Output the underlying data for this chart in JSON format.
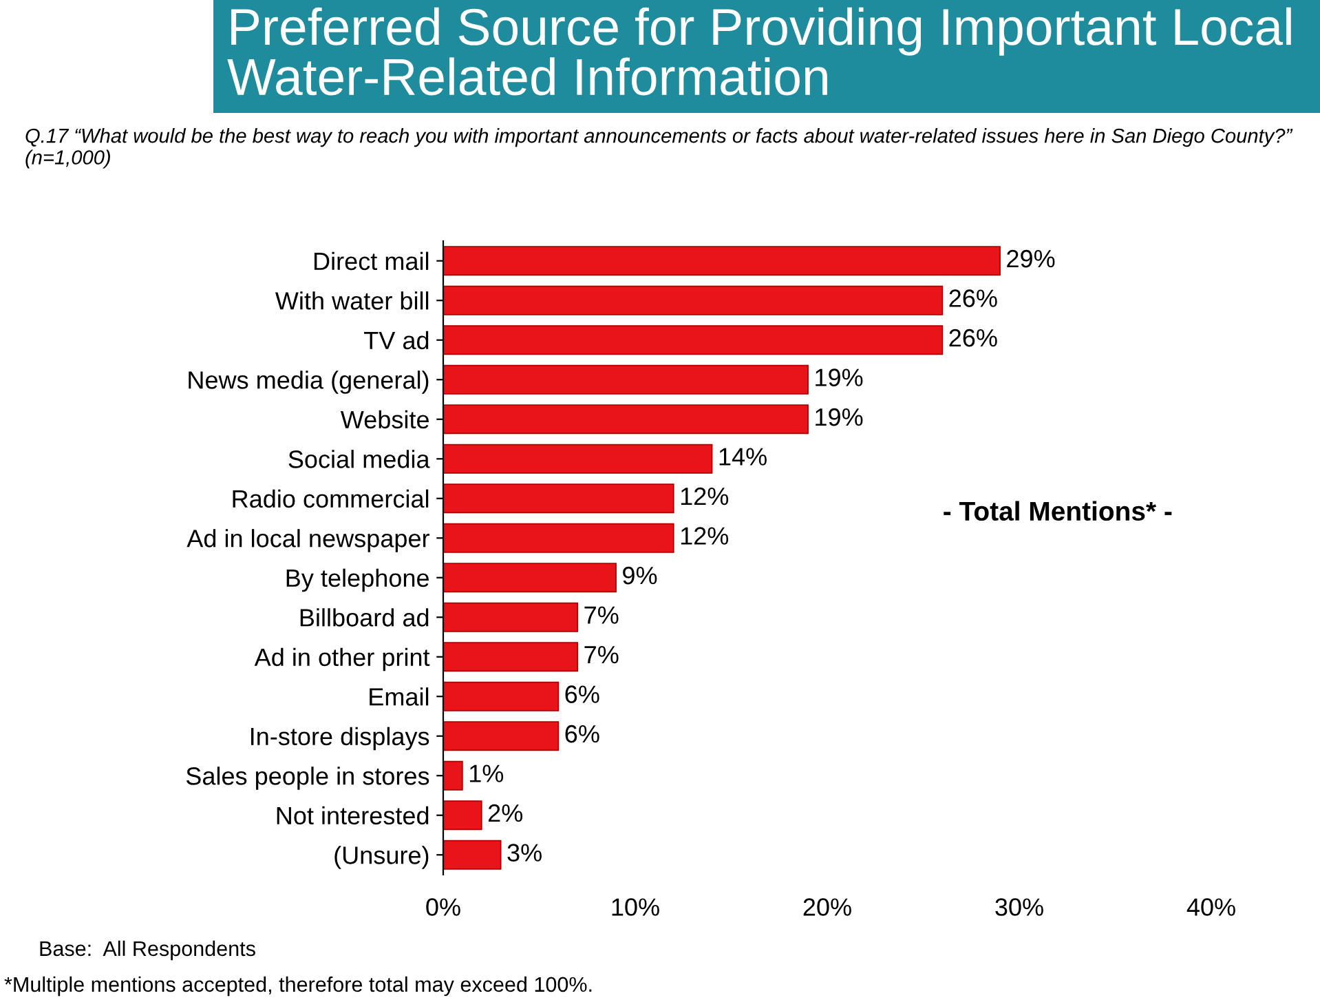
{
  "chart_data": {
    "type": "bar",
    "orientation": "horizontal",
    "title": "Preferred Source for Providing Important Local Water-Related Information",
    "subtitle": "Q.17 “What would be the best way to reach you with important announcements or facts about water-related issues here in San Diego County?” (n=1,000)",
    "categories": [
      "Direct mail",
      "With water bill",
      "TV ad",
      "News media (general)",
      "Website",
      "Social media",
      "Radio commercial",
      "Ad in local newspaper",
      "By telephone",
      "Billboard ad",
      "Ad in other print",
      "Email",
      "In-store displays",
      "Sales people in stores",
      "Not interested",
      "(Unsure)"
    ],
    "values": [
      29,
      26,
      26,
      19,
      19,
      14,
      12,
      12,
      9,
      7,
      7,
      6,
      6,
      1,
      2,
      3
    ],
    "value_labels": [
      "29%",
      "26%",
      "26%",
      "19%",
      "19%",
      "14%",
      "12%",
      "12%",
      "9%",
      "7%",
      "7%",
      "6%",
      "6%",
      "1%",
      "2%",
      "3%"
    ],
    "color": "#e8141a",
    "xlim": [
      0,
      40
    ],
    "xticks": [
      {
        "value": 0,
        "label": "0%"
      },
      {
        "value": 10,
        "label": "10%"
      },
      {
        "value": 20,
        "label": "20%"
      },
      {
        "value": 30,
        "label": "30%"
      },
      {
        "value": 40,
        "label": "40%"
      }
    ],
    "grid": false,
    "annotations": [
      "- Total Mentions* -",
      "Base:  All Respondents",
      "*Multiple mentions accepted, therefore total may exceed 100%."
    ]
  }
}
